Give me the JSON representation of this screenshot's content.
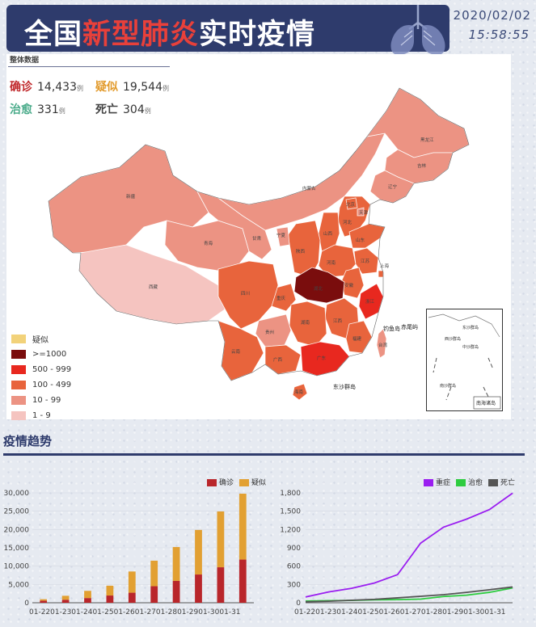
{
  "header": {
    "title_pre": "全国",
    "title_highlight": "新型肺炎",
    "title_post": "实时疫情",
    "date": "2020/02/02",
    "time": "15:58:55"
  },
  "summary": {
    "title": "整体数据",
    "items": [
      {
        "label": "确诊",
        "value": "14,433",
        "unit": "例",
        "color": "#c0282b"
      },
      {
        "label": "疑似",
        "value": "19,544",
        "unit": "例",
        "color": "#e29a2b"
      },
      {
        "label": "治愈",
        "value": "331",
        "unit": "例",
        "color": "#4aab8a"
      },
      {
        "label": "死亡",
        "value": "304",
        "unit": "例",
        "color": "#555555"
      }
    ]
  },
  "map": {
    "legend": [
      {
        "label": "疑似",
        "color": "#f2d27a"
      },
      {
        "label": ">=1000",
        "color": "#7a0d0d"
      },
      {
        "label": "500 - 999",
        "color": "#e8281f"
      },
      {
        "label": "100 - 499",
        "color": "#e8643c"
      },
      {
        "label": "10 - 99",
        "color": "#ec9383"
      },
      {
        "label": "1 - 9",
        "color": "#f5c4c0"
      }
    ],
    "labels": {
      "xinjiang": "新疆",
      "xizang": "西藏",
      "qinghai": "青海",
      "gansu": "甘肃",
      "neimenggu": "内蒙古",
      "heilongjiang": "黑龙江",
      "jilin": "吉林",
      "liaoning": "辽宁",
      "beijing": "北京",
      "tianjin": "天津",
      "hebei": "河北",
      "shanxi": "山西",
      "shaanxi": "陕西",
      "ningxia": "宁夏",
      "henan": "河南",
      "shandong": "山东",
      "jiangsu": "江苏",
      "anhui": "安徽",
      "hubei": "湖北",
      "chongqing": "重庆",
      "sichuan": "四川",
      "guizhou": "贵州",
      "yunnan": "云南",
      "hunan": "湖南",
      "jiangxi": "江西",
      "zhejiang": "浙江",
      "fujian": "福建",
      "guangdong": "广东",
      "guangxi": "广西",
      "hainan": "海南",
      "taiwan": "台湾",
      "shanghai": "上海"
    },
    "islands": {
      "diaoyu": "钓鱼岛",
      "chiwei": "赤尾屿",
      "dongsha": "东沙群岛"
    },
    "inset": {
      "title": "南海诸岛",
      "labels": [
        "东沙群岛",
        "西沙群岛",
        "中沙群岛",
        "南沙群岛"
      ]
    }
  },
  "trend": {
    "title": "疫情趋势"
  },
  "chart_data": [
    {
      "type": "bar",
      "stacked": true,
      "categories": [
        "01-22",
        "01-23",
        "01-24",
        "01-25",
        "01-26",
        "01-27",
        "01-28",
        "01-29",
        "01-30",
        "01-31"
      ],
      "series": [
        {
          "name": "确诊",
          "color": "#b9262b",
          "values": [
            571,
            830,
            1287,
            1975,
            2744,
            4515,
            5974,
            7711,
            9692,
            11791
          ]
        },
        {
          "name": "疑似",
          "color": "#e2a032",
          "values": [
            393,
            1072,
            1965,
            2684,
            5794,
            6973,
            9239,
            12167,
            15238,
            17988
          ]
        }
      ],
      "ylim": [
        0,
        30000
      ],
      "yticks": [
        "0",
        "5,000",
        "10,000",
        "15,000",
        "20,000",
        "25,000",
        "30,000"
      ],
      "xtick_labels": [
        "01-22",
        "01-23",
        "01-24",
        "01-25",
        "01-26",
        "01-27",
        "01-28",
        "01-29",
        "01-30",
        "01-31"
      ]
    },
    {
      "type": "line",
      "x": [
        "01-22",
        "01-23",
        "01-24",
        "01-25",
        "01-26",
        "01-27",
        "01-28",
        "01-29",
        "01-30",
        "01-31"
      ],
      "series": [
        {
          "name": "重症",
          "color": "#9a1ef0",
          "values": [
            95,
            177,
            237,
            324,
            461,
            976,
            1239,
            1370,
            1527,
            1795
          ]
        },
        {
          "name": "治愈",
          "color": "#2ecc40",
          "values": [
            28,
            34,
            38,
            49,
            51,
            60,
            103,
            124,
            171,
            243
          ]
        },
        {
          "name": "死亡",
          "color": "#555555",
          "values": [
            17,
            25,
            41,
            56,
            80,
            106,
            132,
            170,
            213,
            259
          ]
        }
      ],
      "ylim": [
        0,
        1800
      ],
      "yticks": [
        "0",
        "300",
        "600",
        "900",
        "1,200",
        "1,500",
        "1,800"
      ],
      "xtick_labels": [
        "01-22",
        "01-23",
        "01-24",
        "01-25",
        "01-26",
        "01-27",
        "01-28",
        "01-29",
        "01-30",
        "01-31"
      ]
    }
  ]
}
